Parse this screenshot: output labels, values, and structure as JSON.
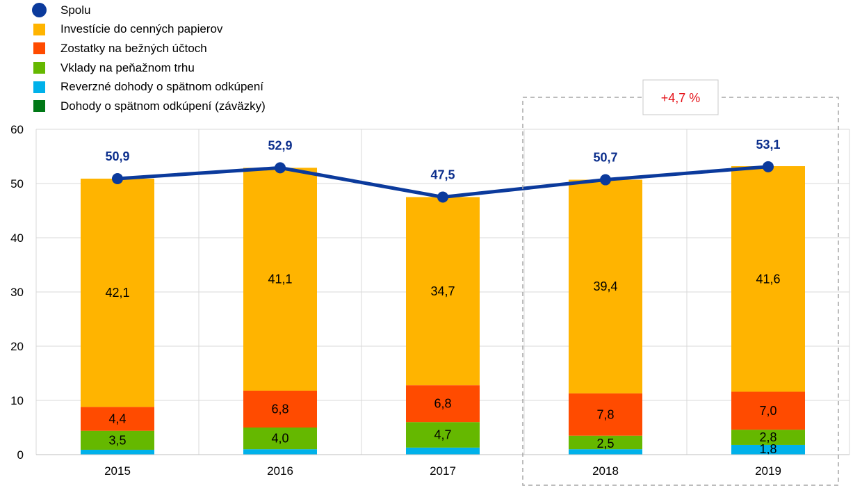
{
  "colors": {
    "Spolu": "#0b3a9c",
    "Investície do cenných papierov": "#ffb400",
    "Zostatky na bežných účtoch": "#ff4b00",
    "Vklady na peňažnom trhu": "#65b800",
    "Reverzné dohody o spätnom odkúpení": "#00b1ea",
    "Dohody o spätnom odkúpení (záväzky)": "#007816",
    "grid": "#d9d9d9",
    "dashed_box": "#a6a6a6",
    "note": "#e5141b"
  },
  "legend": [
    {
      "label": "Spolu",
      "marker": "circle"
    },
    {
      "label": "Investície do cenných papierov",
      "marker": "square"
    },
    {
      "label": "Zostatky na bežných účtoch",
      "marker": "square"
    },
    {
      "label": "Vklady na peňažnom trhu",
      "marker": "square"
    },
    {
      "label": "Reverzné dohody o spätnom odkúpení",
      "marker": "square"
    },
    {
      "label": "Dohody o spätnom odkúpení (záväzky)",
      "marker": "square"
    }
  ],
  "chart_data": {
    "type": "bar",
    "stacked": true,
    "categories": [
      "2015",
      "2016",
      "2017",
      "2018",
      "2019"
    ],
    "ylim": [
      0,
      60
    ],
    "yticks": [
      0,
      10,
      20,
      30,
      40,
      50,
      60
    ],
    "grid": true,
    "series": [
      {
        "name": "Reverzné dohody o spätnom odkúpení",
        "values": [
          0.9,
          1.0,
          1.3,
          1.0,
          1.8
        ],
        "labels": [
          "",
          "",
          "",
          "",
          "1,8"
        ]
      },
      {
        "name": "Vklady na peňažnom trhu",
        "values": [
          3.5,
          4.0,
          4.7,
          2.5,
          2.8
        ],
        "labels": [
          "3,5",
          "4,0",
          "4,7",
          "2,5",
          "2,8"
        ]
      },
      {
        "name": "Zostatky na bežných účtoch",
        "values": [
          4.4,
          6.8,
          6.8,
          7.8,
          7.0
        ],
        "labels": [
          "4,4",
          "6,8",
          "6,8",
          "7,8",
          "7,0"
        ]
      },
      {
        "name": "Investície do cenných papierov",
        "values": [
          42.1,
          41.1,
          34.7,
          39.4,
          41.6
        ],
        "labels": [
          "42,1",
          "41,1",
          "34,7",
          "39,4",
          "41,6"
        ]
      }
    ],
    "line": {
      "name": "Spolu",
      "values": [
        50.9,
        52.9,
        47.5,
        50.7,
        53.1
      ],
      "labels": [
        "50,9",
        "52,9",
        "47,5",
        "50,7",
        "53,1"
      ]
    },
    "annotation": {
      "text": "+4,7 %",
      "categories": [
        "2018",
        "2019"
      ]
    }
  }
}
